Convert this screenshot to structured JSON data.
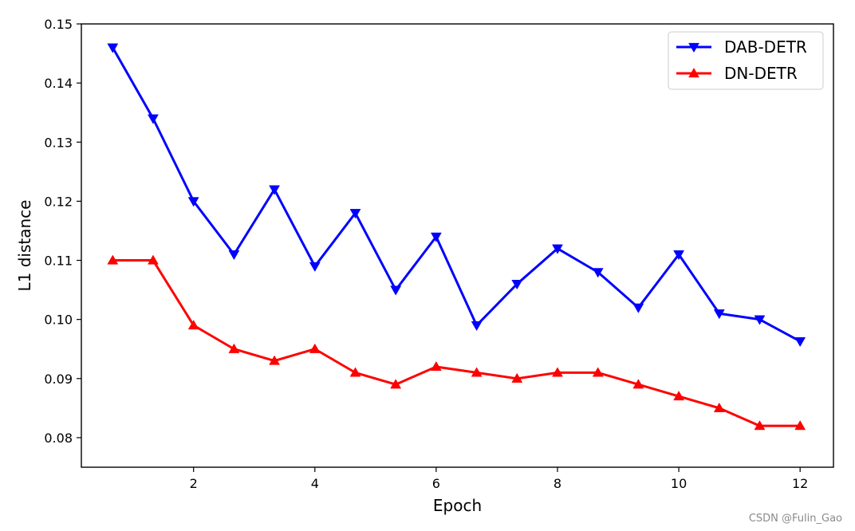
{
  "chart_data": {
    "type": "line",
    "xlabel": "Epoch",
    "ylabel": "L1 distance",
    "xlim": [
      0.15,
      12.55
    ],
    "ylim": [
      0.075,
      0.15
    ],
    "xticks": [
      2,
      4,
      6,
      8,
      10,
      12
    ],
    "yticks": [
      0.08,
      0.09,
      0.1,
      0.11,
      0.12,
      0.13,
      0.14,
      0.15
    ],
    "ytick_labels": [
      "0.08",
      "0.09",
      "0.10",
      "0.11",
      "0.12",
      "0.13",
      "0.14",
      "0.15"
    ],
    "legend_position": "top-right",
    "grid": false,
    "x": [
      0.667,
      1.333,
      2.0,
      2.667,
      3.333,
      4.0,
      4.667,
      5.333,
      6.0,
      6.667,
      7.333,
      8.0,
      8.667,
      9.333,
      10.0,
      10.667,
      11.333,
      12.0
    ],
    "series": [
      {
        "name": "DAB-DETR",
        "color": "#0000ff",
        "marker": "triangle-down",
        "values": [
          0.146,
          0.134,
          0.12,
          0.111,
          0.122,
          0.109,
          0.118,
          0.105,
          0.114,
          0.099,
          0.106,
          0.112,
          0.108,
          0.102,
          0.111,
          0.101,
          0.1,
          0.0963
        ]
      },
      {
        "name": "DN-DETR",
        "color": "#ff0000",
        "marker": "triangle-up",
        "values": [
          0.11,
          0.11,
          0.099,
          0.095,
          0.093,
          0.095,
          0.091,
          0.089,
          0.092,
          0.091,
          0.09,
          0.091,
          0.091,
          0.089,
          0.087,
          0.085,
          0.082,
          0.082
        ]
      }
    ]
  },
  "watermark": "CSDN @Fulin_Gao"
}
